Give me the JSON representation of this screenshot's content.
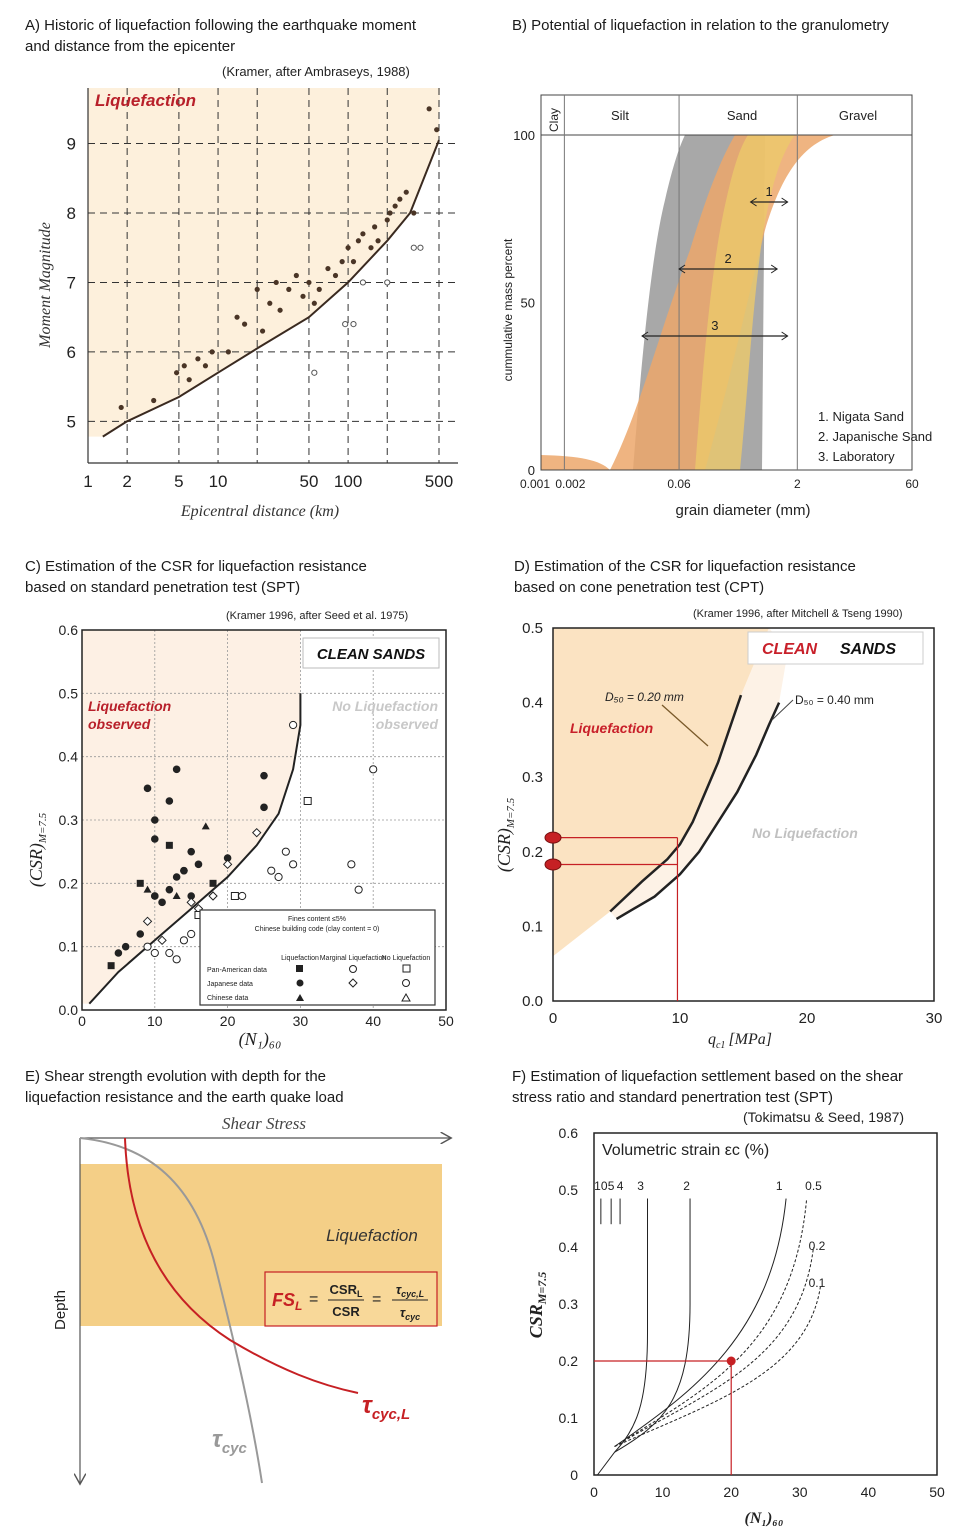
{
  "panels": {
    "A": {
      "title_line1": "A) Historic of liquefaction following the earthquake moment",
      "title_line2": "and distance from the epicenter",
      "source": "(Kramer, after Ambraseys, 1988)",
      "region_label": "Liquefaction",
      "xlabel": "Epicentral distance (km)",
      "ylabel": "Moment Magnitude"
    },
    "B": {
      "title_line1": "B) Potential of liquefaction in relation to the granulometry",
      "header": [
        "Clay",
        "Silt",
        "Sand",
        "Gravel"
      ],
      "xlabel": "grain diameter (mm)",
      "ylabel": "cummulative mass percent",
      "range_labels": [
        "1",
        "2",
        "3"
      ],
      "legend": [
        "1. Nigata Sand",
        "2. Japanische Sand",
        "3. Laboratory"
      ]
    },
    "C": {
      "title_line1": "C) Estimation of the CSR for liquefaction resistance",
      "title_line2": "based on standard penetration test (SPT)",
      "source": "(Kramer 1996, after Seed et al. 1975)",
      "box_label": "CLEAN SANDS",
      "liq_label": [
        "Liquefaction",
        "observed"
      ],
      "noliq_label": [
        "No Liquefaction",
        "observed"
      ],
      "xlabel": "(N₁)₆₀",
      "ylabel": "(CSR)",
      "ylabel_sub": "M=7.5",
      "legend_title": [
        "Fines content ≤5%",
        "Chinese building code (clay content = 0)"
      ],
      "legend_cols": [
        "Liquefaction",
        "Marginal Liquefaction",
        "No Liquefaction"
      ],
      "legend_rows": [
        "Pan-American data",
        "Japanese data",
        "Chinese data"
      ]
    },
    "D": {
      "title_line1": "D) Estimation of the CSR for liquefaction resistance",
      "title_line2": "based on cone penetration test (CPT)",
      "source": "(Kramer 1996, after Mitchell & Tseng 1990)",
      "box_label_a": "CLEAN",
      "box_label_b": "SANDS",
      "liq_label": "Liquefaction",
      "noliq_label": "No Liquefaction",
      "curve_labels": [
        "D₅₀ = 0.20 mm",
        "D₅₀ = 0.40 mm"
      ],
      "xlabel": "q",
      "xlabel_sub": "c1",
      "xlabel_unit": "[MPa]",
      "ylabel": "(CSR)",
      "ylabel_sub": "M=7.5"
    },
    "E": {
      "title_line1": "E) Shear strength evolution with depth for the",
      "title_line2": "liquefaction resistance and the earth quake load",
      "xlabel": "Shear Stress",
      "ylabel": "Depth",
      "zone_label": "Liquefaction",
      "fs_label": "FS",
      "tau_cyc": "τ",
      "tau_cyc_sub": "cyc",
      "tau_cycl_sub": "cyc,L"
    },
    "F": {
      "title_line1": "F) Estimation of liquefaction settlement based on the shear",
      "title_line2": "stress ratio and standard penertration test (SPT)",
      "source": "(Tokimatsu & Seed, 1987)",
      "box_label": "Volumetric strain εc (%)",
      "xlabel": "(N₁)₆₀",
      "ylabel": "CSR",
      "ylabel_sub": "M=7.5"
    }
  },
  "chart_data": [
    {
      "id": "A",
      "type": "scatter",
      "xscale": "log",
      "x_ticks": [
        1,
        2,
        5,
        10,
        50,
        100,
        500
      ],
      "y_ticks": [
        5,
        6,
        7,
        8,
        9
      ],
      "xlim": [
        1,
        700
      ],
      "ylim": [
        4.4,
        9.8
      ],
      "boundary_curve": {
        "x": [
          1.3,
          2,
          5,
          10,
          20,
          50,
          100,
          200,
          300,
          500
        ],
        "y": [
          4.78,
          5.0,
          5.35,
          5.7,
          6.05,
          6.5,
          7.0,
          7.6,
          8.0,
          9.05
        ]
      },
      "series": [
        {
          "name": "Liquefaction",
          "x": [
            1.8,
            3.2,
            4.8,
            5.5,
            6,
            7,
            8,
            9,
            12,
            14,
            16,
            20,
            22,
            25,
            28,
            30,
            35,
            40,
            45,
            50,
            55,
            60,
            70,
            80,
            90,
            100,
            110,
            120,
            130,
            150,
            160,
            170,
            200,
            210,
            230,
            250,
            280,
            320,
            420,
            480
          ],
          "y": [
            5.2,
            5.3,
            5.7,
            5.8,
            5.6,
            5.9,
            5.8,
            6.0,
            6.0,
            6.5,
            6.4,
            6.9,
            6.3,
            6.7,
            7.0,
            6.6,
            6.9,
            7.1,
            6.8,
            7.0,
            6.7,
            6.9,
            7.2,
            7.1,
            7.3,
            7.5,
            7.3,
            7.6,
            7.7,
            7.5,
            7.8,
            7.6,
            7.9,
            8.0,
            8.1,
            8.2,
            8.3,
            8.0,
            9.5,
            9.2
          ]
        },
        {
          "name": "No liquefaction",
          "x": [
            55,
            95,
            110,
            130,
            200,
            320,
            360
          ],
          "y": [
            5.7,
            6.4,
            6.4,
            7.0,
            7.0,
            7.5,
            7.5
          ]
        }
      ]
    },
    {
      "id": "B",
      "type": "area",
      "xscale": "log",
      "x_ticks": [
        0.001,
        0.002,
        0.06,
        2,
        60
      ],
      "x_tick_labels": [
        "0.001",
        "0.002",
        "0.06",
        "2",
        "60"
      ],
      "y_ticks": [
        0,
        50,
        100
      ],
      "xlim": [
        0.001,
        60
      ],
      "ylim": [
        0,
        100
      ],
      "bands": [
        {
          "name": "Laboratory",
          "color": "#a8a8a8"
        },
        {
          "name": "Japanische Sand",
          "color": "#eca76b"
        },
        {
          "name": "Nigata Sand",
          "color": "#ecc96a"
        }
      ],
      "ranges": [
        {
          "label": "1",
          "x": [
            0.5,
            1.5
          ],
          "y": 80
        },
        {
          "label": "2",
          "x": [
            0.06,
            1.1
          ],
          "y": 60
        },
        {
          "label": "3",
          "x": [
            0.02,
            1.5
          ],
          "y": 40
        }
      ]
    },
    {
      "id": "C",
      "type": "scatter",
      "x_ticks": [
        0,
        10,
        20,
        30,
        40,
        50
      ],
      "y_ticks": [
        0.0,
        0.1,
        0.2,
        0.3,
        0.4,
        0.5,
        0.6
      ],
      "xlim": [
        0,
        50
      ],
      "ylim": [
        0,
        0.6
      ],
      "boundary_curve": {
        "x": [
          1,
          5,
          10,
          15,
          20,
          24,
          27,
          29,
          30,
          30
        ],
        "y": [
          0.01,
          0.06,
          0.11,
          0.16,
          0.21,
          0.26,
          0.31,
          0.38,
          0.45,
          0.5
        ]
      },
      "series": [
        {
          "name": "Liquefaction",
          "x": [
            4,
            5,
            6,
            8,
            9,
            10,
            10,
            12,
            12,
            13,
            14,
            15,
            16,
            17,
            18,
            20,
            25,
            25,
            9,
            10,
            10,
            8,
            13,
            14,
            11,
            12,
            15,
            13
          ],
          "y": [
            0.07,
            0.09,
            0.1,
            0.12,
            0.19,
            0.18,
            0.27,
            0.26,
            0.33,
            0.38,
            0.22,
            0.25,
            0.23,
            0.29,
            0.2,
            0.24,
            0.37,
            0.32,
            0.35,
            0.3,
            0.18,
            0.2,
            0.18,
            0.22,
            0.17,
            0.19,
            0.18,
            0.21
          ]
        },
        {
          "name": "Marginal liquefaction",
          "x": [
            9,
            11,
            15,
            16,
            18,
            20,
            24
          ],
          "y": [
            0.14,
            0.11,
            0.17,
            0.16,
            0.18,
            0.23,
            0.28
          ]
        },
        {
          "name": "No liquefaction",
          "x": [
            9,
            10,
            13,
            14,
            15,
            21,
            22,
            26,
            27,
            28,
            29,
            31,
            37,
            38,
            40,
            29,
            12,
            16
          ],
          "y": [
            0.1,
            0.09,
            0.08,
            0.11,
            0.12,
            0.18,
            0.18,
            0.22,
            0.21,
            0.25,
            0.23,
            0.33,
            0.23,
            0.19,
            0.38,
            0.45,
            0.09,
            0.15
          ]
        }
      ]
    },
    {
      "id": "D",
      "type": "line",
      "x_ticks": [
        0,
        10,
        20,
        30
      ],
      "y_ticks": [
        0.0,
        0.1,
        0.2,
        0.3,
        0.4,
        0.5
      ],
      "xlim": [
        0,
        30
      ],
      "ylim": [
        0,
        0.5
      ],
      "series": [
        {
          "name": "D50 = 0.20 mm",
          "x": [
            4.5,
            7,
            9,
            10,
            11,
            12,
            13,
            14,
            14.8
          ],
          "y": [
            0.12,
            0.16,
            0.19,
            0.21,
            0.24,
            0.28,
            0.32,
            0.37,
            0.41
          ]
        },
        {
          "name": "D50 = 0.40 mm",
          "x": [
            5,
            8,
            10,
            11.5,
            13,
            14.5,
            16,
            17,
            17.8
          ],
          "y": [
            0.11,
            0.14,
            0.17,
            0.2,
            0.24,
            0.28,
            0.33,
            0.37,
            0.4
          ]
        }
      ],
      "markers": [
        {
          "x": 0,
          "y": 0.219
        },
        {
          "x": 0,
          "y": 0.183
        }
      ],
      "guide_x": 9.8
    },
    {
      "id": "F",
      "type": "line",
      "x_ticks": [
        0,
        10,
        20,
        30,
        40,
        50
      ],
      "y_ticks": [
        0,
        0.1,
        0.2,
        0.3,
        0.4,
        0.5,
        0.6
      ],
      "xlim": [
        0,
        50
      ],
      "ylim": [
        0,
        0.6
      ],
      "curve_labels": [
        "10",
        "5",
        "4",
        "3",
        "2",
        "1",
        "0.5",
        "0.2",
        "0.1"
      ],
      "marker": {
        "x": 20,
        "y": 0.2
      }
    }
  ]
}
